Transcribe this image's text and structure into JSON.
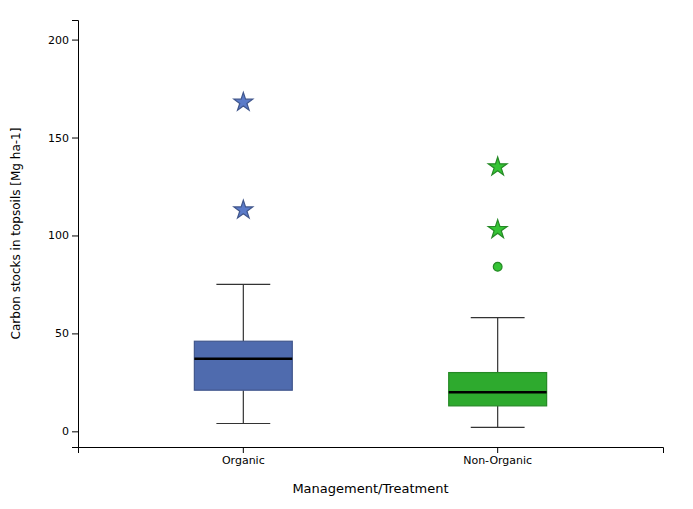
{
  "chart_data": {
    "type": "box",
    "xlabel": "Management/Treatment",
    "ylabel": "Carbon stocks in topsoils [Mg ha-1]",
    "categories": [
      "Organic",
      "Non-Organic"
    ],
    "ylim": [
      -8,
      210
    ],
    "yticks": [
      0,
      50,
      100,
      150,
      200
    ],
    "boxes": [
      {
        "q1": 21,
        "median": 37,
        "q3": 46,
        "whisker_low": 4,
        "whisker_high": 75,
        "color": "#4f6bae",
        "outliers": [
          {
            "marker": "star",
            "values": [
              113,
              168
            ]
          }
        ]
      },
      {
        "q1": 13,
        "median": 20,
        "q3": 30,
        "whisker_low": 2,
        "whisker_high": 58,
        "color": "#2eaa2e",
        "outliers": [
          {
            "marker": "star",
            "values": [
              103,
              135
            ]
          },
          {
            "marker": "circle",
            "values": [
              84
            ]
          }
        ]
      }
    ]
  }
}
